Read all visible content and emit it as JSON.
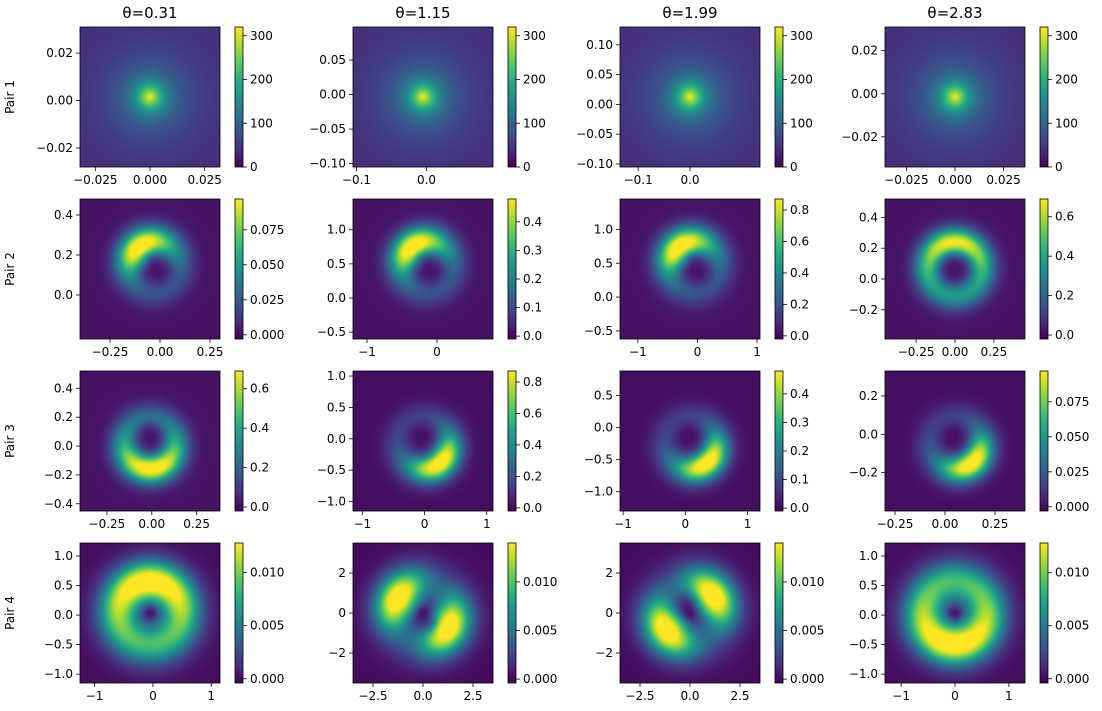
{
  "chart_data": {
    "type": "heatmap",
    "colormap": "viridis",
    "column_titles": [
      "θ=0.31",
      "θ=1.15",
      "θ=1.99",
      "θ=2.83"
    ],
    "row_labels": [
      "Pair 1",
      "Pair 2",
      "Pair 3",
      "Pair 4"
    ],
    "panels": [
      [
        {
          "pattern": "peak",
          "xlim": [
            -0.032,
            0.032
          ],
          "ylim": [
            -0.028,
            0.031
          ],
          "xticks": [
            -0.025,
            0.0,
            0.025
          ],
          "xtick_labels": [
            "−0.025",
            "0.000",
            "0.025"
          ],
          "yticks": [
            -0.02,
            0.0,
            0.02
          ],
          "ytick_labels": [
            "−0.02",
            "0.00",
            "0.02"
          ],
          "cbar_range": [
            0,
            320
          ],
          "cbar_ticks": [
            0,
            100,
            200,
            300
          ],
          "cbar_labels": [
            "0",
            "100",
            "200",
            "300"
          ]
        },
        {
          "pattern": "peak",
          "xlim": [
            -0.105,
            0.095
          ],
          "ylim": [
            -0.105,
            0.098
          ],
          "xticks": [
            -0.1,
            0.0
          ],
          "xtick_labels": [
            "−0.1",
            "0.0"
          ],
          "yticks": [
            -0.1,
            -0.05,
            0.0,
            0.05
          ],
          "ytick_labels": [
            "−0.10",
            "−0.05",
            "0.00",
            "0.05"
          ],
          "cbar_range": [
            0,
            320
          ],
          "cbar_ticks": [
            0,
            100,
            200,
            300
          ],
          "cbar_labels": [
            "0",
            "100",
            "200",
            "300"
          ]
        },
        {
          "pattern": "peak",
          "xlim": [
            -0.135,
            0.135
          ],
          "ylim": [
            -0.105,
            0.13
          ],
          "xticks": [
            -0.1,
            0.0
          ],
          "xtick_labels": [
            "−0.1",
            "0.0"
          ],
          "yticks": [
            -0.1,
            -0.05,
            0.0,
            0.05,
            0.1
          ],
          "ytick_labels": [
            "−0.10",
            "−0.05",
            "0.00",
            "0.05",
            "0.10"
          ],
          "cbar_range": [
            0,
            320
          ],
          "cbar_ticks": [
            0,
            100,
            200,
            300
          ],
          "cbar_labels": [
            "0",
            "100",
            "200",
            "300"
          ]
        },
        {
          "pattern": "peak",
          "xlim": [
            -0.036,
            0.036
          ],
          "ylim": [
            -0.034,
            0.031
          ],
          "xticks": [
            -0.025,
            0.0,
            0.025
          ],
          "xtick_labels": [
            "−0.025",
            "0.000",
            "0.025"
          ],
          "yticks": [
            -0.02,
            0.0,
            0.02
          ],
          "ytick_labels": [
            "−0.02",
            "0.00",
            "0.02"
          ],
          "cbar_range": [
            0,
            320
          ],
          "cbar_ticks": [
            0,
            100,
            200,
            300
          ],
          "cbar_labels": [
            "0",
            "100",
            "200",
            "300"
          ]
        }
      ],
      [
        {
          "pattern": "crescent_up",
          "xlim": [
            -0.4,
            0.3
          ],
          "ylim": [
            -0.22,
            0.48
          ],
          "xticks": [
            -0.25,
            0.0,
            0.25
          ],
          "xtick_labels": [
            "−0.25",
            "0.00",
            "0.25"
          ],
          "yticks": [
            0.0,
            0.2,
            0.4
          ],
          "ytick_labels": [
            "0.0",
            "0.2",
            "0.4"
          ],
          "cbar_range": [
            -0.003,
            0.097
          ],
          "cbar_ticks": [
            0.0,
            0.025,
            0.05,
            0.075
          ],
          "cbar_labels": [
            "0.000",
            "0.025",
            "0.050",
            "0.075"
          ]
        },
        {
          "pattern": "crescent_up",
          "xlim": [
            -1.2,
            0.8
          ],
          "ylim": [
            -0.6,
            1.45
          ],
          "xticks": [
            -1,
            0
          ],
          "xtick_labels": [
            "−1",
            "0"
          ],
          "yticks": [
            -0.5,
            0.0,
            0.5,
            1.0
          ],
          "ytick_labels": [
            "−0.5",
            "0.0",
            "0.5",
            "1.0"
          ],
          "cbar_range": [
            -0.01,
            0.48
          ],
          "cbar_ticks": [
            0.0,
            0.1,
            0.2,
            0.3,
            0.4
          ],
          "cbar_labels": [
            "0.0",
            "0.1",
            "0.2",
            "0.3",
            "0.4"
          ]
        },
        {
          "pattern": "crescent_up",
          "xlim": [
            -1.3,
            1.05
          ],
          "ylim": [
            -0.62,
            1.45
          ],
          "xticks": [
            -1,
            0,
            1
          ],
          "xtick_labels": [
            "−1",
            "0",
            "1"
          ],
          "yticks": [
            -0.5,
            0.0,
            0.5,
            1.0
          ],
          "ytick_labels": [
            "−0.5",
            "0.0",
            "0.5",
            "1.0"
          ],
          "cbar_range": [
            -0.02,
            0.87
          ],
          "cbar_ticks": [
            0.0,
            0.2,
            0.4,
            0.6,
            0.8
          ],
          "cbar_labels": [
            "0.0",
            "0.2",
            "0.4",
            "0.6",
            "0.8"
          ]
        },
        {
          "pattern": "ring_up",
          "xlim": [
            -0.45,
            0.45
          ],
          "ylim": [
            -0.39,
            0.52
          ],
          "xticks": [
            -0.25,
            0.0,
            0.25
          ],
          "xtick_labels": [
            "−0.25",
            "0.00",
            "0.25"
          ],
          "yticks": [
            -0.2,
            0.0,
            0.2,
            0.4
          ],
          "ytick_labels": [
            "−0.2",
            "0.0",
            "0.2",
            "0.4"
          ],
          "cbar_range": [
            -0.02,
            0.69
          ],
          "cbar_ticks": [
            0.0,
            0.2,
            0.4,
            0.6
          ],
          "cbar_labels": [
            "0.0",
            "0.2",
            "0.4",
            "0.6"
          ]
        }
      ],
      [
        {
          "pattern": "ring_down",
          "xlim": [
            -0.4,
            0.38
          ],
          "ylim": [
            -0.45,
            0.52
          ],
          "xticks": [
            -0.25,
            0.0,
            0.25
          ],
          "xtick_labels": [
            "−0.25",
            "0.00",
            "0.25"
          ],
          "yticks": [
            -0.4,
            -0.2,
            0.0,
            0.2,
            0.4
          ],
          "ytick_labels": [
            "−0.4",
            "−0.2",
            "0.0",
            "0.2",
            "0.4"
          ],
          "cbar_range": [
            -0.02,
            0.69
          ],
          "cbar_ticks": [
            0.0,
            0.2,
            0.4,
            0.6
          ],
          "cbar_labels": [
            "0.0",
            "0.2",
            "0.4",
            "0.6"
          ]
        },
        {
          "pattern": "crescent_down",
          "xlim": [
            -1.15,
            1.1
          ],
          "ylim": [
            -1.15,
            1.08
          ],
          "xticks": [
            -1,
            0,
            1
          ],
          "xtick_labels": [
            "−1",
            "0",
            "1"
          ],
          "yticks": [
            -1.0,
            -0.5,
            0.0,
            0.5,
            1.0
          ],
          "ytick_labels": [
            "−1.0",
            "−0.5",
            "0.0",
            "0.5",
            "1.0"
          ],
          "cbar_range": [
            -0.02,
            0.87
          ],
          "cbar_ticks": [
            0.0,
            0.2,
            0.4,
            0.6,
            0.8
          ],
          "cbar_labels": [
            "0.0",
            "0.2",
            "0.4",
            "0.6",
            "0.8"
          ]
        },
        {
          "pattern": "crescent_down",
          "xlim": [
            -1.05,
            1.2
          ],
          "ylim": [
            -1.3,
            0.88
          ],
          "xticks": [
            -1,
            0,
            1
          ],
          "xtick_labels": [
            "−1",
            "0",
            "1"
          ],
          "yticks": [
            -1.0,
            -0.5,
            0.0,
            0.5
          ],
          "ytick_labels": [
            "−1.0",
            "−0.5",
            "0.0",
            "0.5"
          ],
          "cbar_range": [
            -0.01,
            0.48
          ],
          "cbar_ticks": [
            0.0,
            0.1,
            0.2,
            0.3,
            0.4
          ],
          "cbar_labels": [
            "0.0",
            "0.1",
            "0.2",
            "0.3",
            "0.4"
          ]
        },
        {
          "pattern": "crescent_down",
          "xlim": [
            -0.3,
            0.4
          ],
          "ylim": [
            -0.4,
            0.33
          ],
          "xticks": [
            -0.25,
            0.0,
            0.25
          ],
          "xtick_labels": [
            "−0.25",
            "0.00",
            "0.25"
          ],
          "yticks": [
            -0.2,
            0.0,
            0.2
          ],
          "ytick_labels": [
            "−0.2",
            "0.0",
            "0.2"
          ],
          "cbar_range": [
            -0.003,
            0.097
          ],
          "cbar_ticks": [
            0.0,
            0.025,
            0.05,
            0.075
          ],
          "cbar_labels": [
            "0.000",
            "0.025",
            "0.050",
            "0.075"
          ]
        }
      ],
      [
        {
          "pattern": "ring_dark",
          "xlim": [
            -1.25,
            1.15
          ],
          "ylim": [
            -1.15,
            1.22
          ],
          "xticks": [
            -1,
            0,
            1
          ],
          "xtick_labels": [
            "−1",
            "0",
            "1"
          ],
          "yticks": [
            -1.0,
            -0.5,
            0.0,
            0.5,
            1.0
          ],
          "ytick_labels": [
            "−1.0",
            "−0.5",
            "0.0",
            "0.5",
            "1.0"
          ],
          "cbar_range": [
            -0.0004,
            0.0128
          ],
          "cbar_ticks": [
            0.0,
            0.005,
            0.01
          ],
          "cbar_labels": [
            "0.000",
            "0.005",
            "0.010"
          ]
        },
        {
          "pattern": "swirl_a",
          "xlim": [
            -3.5,
            3.5
          ],
          "ylim": [
            -3.5,
            3.5
          ],
          "xticks": [
            -2.5,
            0.0,
            2.5
          ],
          "xtick_labels": [
            "−2.5",
            "0.0",
            "2.5"
          ],
          "yticks": [
            -2,
            0,
            2
          ],
          "ytick_labels": [
            "−2",
            "0",
            "2"
          ],
          "cbar_range": [
            -0.0004,
            0.014
          ],
          "cbar_ticks": [
            0.0,
            0.005,
            0.01
          ],
          "cbar_labels": [
            "0.000",
            "0.005",
            "0.010"
          ]
        },
        {
          "pattern": "swirl_b",
          "xlim": [
            -3.5,
            3.5
          ],
          "ylim": [
            -3.5,
            3.5
          ],
          "xticks": [
            -2.5,
            0.0,
            2.5
          ],
          "xtick_labels": [
            "−2.5",
            "0.0",
            "2.5"
          ],
          "yticks": [
            -2,
            0,
            2
          ],
          "ytick_labels": [
            "−2",
            "0",
            "2"
          ],
          "cbar_range": [
            -0.0004,
            0.014
          ],
          "cbar_ticks": [
            0.0,
            0.005,
            0.01
          ],
          "cbar_labels": [
            "0.000",
            "0.005",
            "0.010"
          ]
        },
        {
          "pattern": "ring_dark_down",
          "xlim": [
            -1.3,
            1.3
          ],
          "ylim": [
            -1.15,
            1.22
          ],
          "xticks": [
            -1,
            0,
            1
          ],
          "xtick_labels": [
            "−1",
            "0",
            "1"
          ],
          "yticks": [
            -1.0,
            -0.5,
            0.0,
            0.5,
            1.0
          ],
          "ytick_labels": [
            "−1.0",
            "−0.5",
            "0.0",
            "0.5",
            "1.0"
          ],
          "cbar_range": [
            -0.0004,
            0.0128
          ],
          "cbar_ticks": [
            0.0,
            0.005,
            0.01
          ],
          "cbar_labels": [
            "0.000",
            "0.005",
            "0.010"
          ]
        }
      ]
    ]
  }
}
